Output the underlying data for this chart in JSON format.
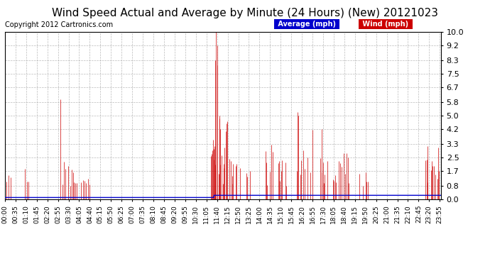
{
  "title": "Wind Speed Actual and Average by Minute (24 Hours) (New) 20121023",
  "copyright": "Copyright 2012 Cartronics.com",
  "yticks": [
    0.0,
    0.8,
    1.7,
    2.5,
    3.3,
    4.2,
    5.0,
    5.8,
    6.7,
    7.5,
    8.3,
    9.2,
    10.0
  ],
  "ylim": [
    0.0,
    10.0
  ],
  "legend_avg_label": "Average (mph)",
  "legend_wind_label": "Wind (mph)",
  "legend_avg_color": "#0000cc",
  "legend_wind_color": "#cc0000",
  "avg_color": "#0000cc",
  "wind_color": "#cc0000",
  "grid_color": "#aaaaaa",
  "bg_color": "#ffffff",
  "title_fontsize": 11,
  "copyright_fontsize": 7,
  "tick_fontsize": 8,
  "avg_before": 0.12,
  "avg_after": 0.25,
  "avg_change_minute": 690,
  "wind_seed": 42
}
